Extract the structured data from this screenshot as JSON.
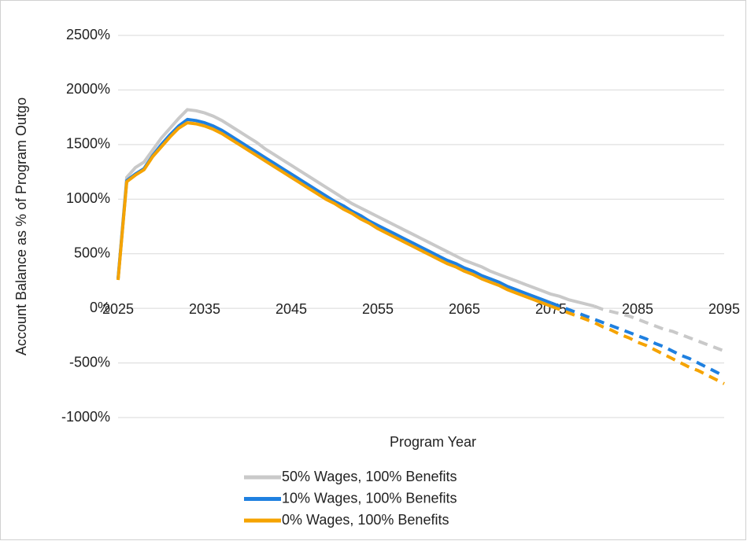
{
  "chart_data": {
    "type": "line",
    "x_label": "Program Year",
    "y_label": "Account Balance as % of Program Outgo",
    "x": [
      2025,
      2026,
      2027,
      2028,
      2029,
      2030,
      2031,
      2032,
      2033,
      2034,
      2035,
      2036,
      2037,
      2038,
      2039,
      2040,
      2041,
      2042,
      2043,
      2044,
      2045,
      2046,
      2047,
      2048,
      2049,
      2050,
      2051,
      2052,
      2053,
      2054,
      2055,
      2056,
      2057,
      2058,
      2059,
      2060,
      2061,
      2062,
      2063,
      2064,
      2065,
      2066,
      2067,
      2068,
      2069,
      2070,
      2071,
      2072,
      2073,
      2074,
      2075,
      2076,
      2077,
      2078,
      2079,
      2080,
      2081,
      2082,
      2083,
      2084,
      2085,
      2086,
      2087,
      2088,
      2089,
      2090,
      2091,
      2092,
      2093,
      2094,
      2095
    ],
    "series": [
      {
        "name": "50% Wages, 100% Benefits",
        "color": "#c9c9c9",
        "solid_until": 2080,
        "values": [
          270,
          1200,
          1290,
          1340,
          1450,
          1560,
          1650,
          1740,
          1820,
          1810,
          1790,
          1760,
          1720,
          1670,
          1620,
          1570,
          1520,
          1460,
          1410,
          1360,
          1310,
          1260,
          1210,
          1160,
          1110,
          1060,
          1010,
          960,
          920,
          880,
          840,
          800,
          760,
          720,
          680,
          640,
          600,
          560,
          520,
          480,
          440,
          410,
          380,
          340,
          310,
          280,
          250,
          220,
          190,
          160,
          130,
          110,
          80,
          60,
          40,
          20,
          -10,
          -30,
          -50,
          -70,
          -100,
          -130,
          -160,
          -190,
          -210,
          -240,
          -270,
          -300,
          -330,
          -360,
          -390
        ]
      },
      {
        "name": "10% Wages, 100% Benefits",
        "color": "#1f80e0",
        "solid_until": 2075,
        "values": [
          270,
          1170,
          1230,
          1280,
          1400,
          1500,
          1590,
          1670,
          1730,
          1720,
          1700,
          1670,
          1630,
          1580,
          1530,
          1480,
          1430,
          1380,
          1330,
          1280,
          1230,
          1180,
          1130,
          1080,
          1030,
          980,
          940,
          890,
          850,
          800,
          760,
          720,
          680,
          640,
          600,
          560,
          520,
          480,
          440,
          410,
          370,
          340,
          300,
          270,
          240,
          200,
          170,
          140,
          110,
          80,
          50,
          20,
          -10,
          -40,
          -70,
          -100,
          -130,
          -160,
          -190,
          -220,
          -250,
          -280,
          -320,
          -350,
          -390,
          -430,
          -460,
          -500,
          -540,
          -580,
          -620
        ]
      },
      {
        "name": "0% Wages, 100% Benefits",
        "color": "#f5a300",
        "solid_until": 2075,
        "values": [
          260,
          1160,
          1220,
          1270,
          1390,
          1480,
          1570,
          1650,
          1700,
          1690,
          1670,
          1640,
          1600,
          1550,
          1500,
          1450,
          1400,
          1350,
          1300,
          1250,
          1200,
          1150,
          1100,
          1050,
          1000,
          960,
          910,
          870,
          820,
          780,
          730,
          690,
          650,
          610,
          570,
          530,
          490,
          450,
          410,
          380,
          340,
          310,
          270,
          240,
          210,
          170,
          140,
          110,
          80,
          50,
          20,
          -10,
          -40,
          -70,
          -100,
          -130,
          -170,
          -200,
          -240,
          -270,
          -310,
          -340,
          -380,
          -420,
          -460,
          -500,
          -540,
          -570,
          -610,
          -650,
          -690
        ]
      }
    ],
    "xlim": [
      2025,
      2095
    ],
    "xticks": [
      2025,
      2035,
      2045,
      2055,
      2065,
      2075,
      2085,
      2095
    ],
    "ylim": [
      -1000,
      2500
    ],
    "yticks": [
      {
        "value": -1000,
        "label": "-1000%"
      },
      {
        "value": -500,
        "label": "-500%"
      },
      {
        "value": 0,
        "label": "0%"
      },
      {
        "value": 500,
        "label": "500%"
      },
      {
        "value": 1000,
        "label": "1000%"
      },
      {
        "value": 1500,
        "label": "1500%"
      },
      {
        "value": 2000,
        "label": "2000%"
      },
      {
        "value": 2500,
        "label": "2500%"
      }
    ],
    "grid": true,
    "legend": "bottom"
  }
}
